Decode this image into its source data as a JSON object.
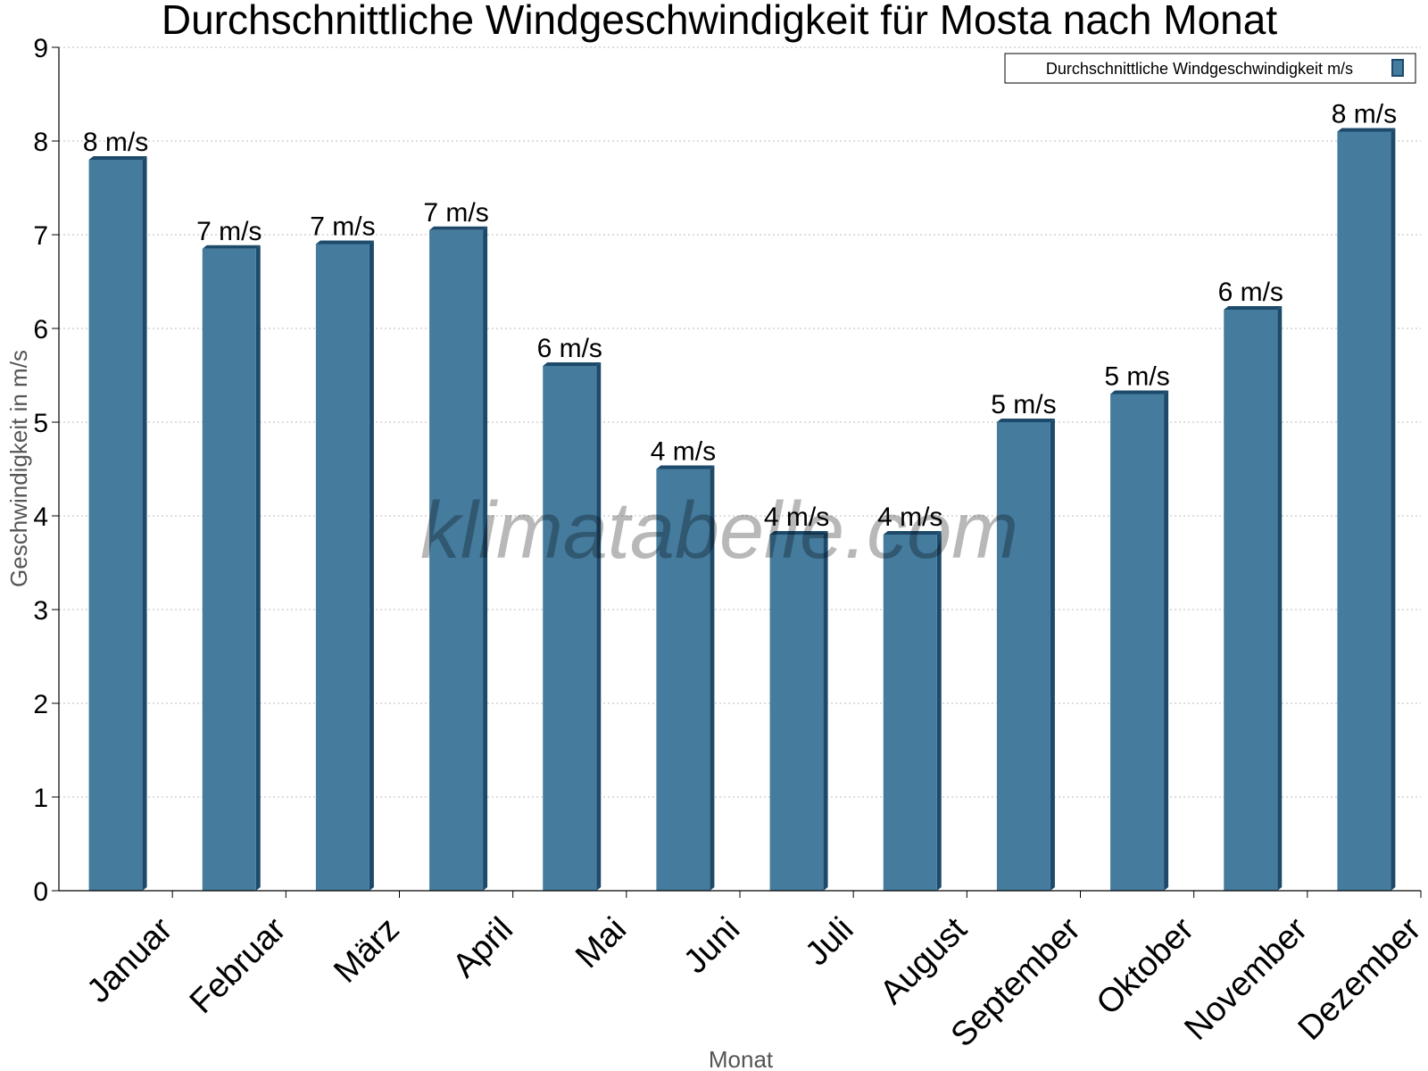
{
  "chart_data": {
    "type": "bar",
    "title": "Durchschnittliche Windgeschwindigkeit für Mosta nach Monat",
    "xlabel": "Monat",
    "ylabel": "Geschwindigkeit in m/s",
    "ylim": [
      0,
      9
    ],
    "yticks": [
      "0",
      "1",
      "2",
      "3",
      "4",
      "5",
      "6",
      "7",
      "8",
      "9"
    ],
    "grid": true,
    "legend_placement": "top-right",
    "categories": [
      "Januar",
      "Februar",
      "März",
      "April",
      "Mai",
      "Juni",
      "Juli",
      "August",
      "September",
      "Oktober",
      "November",
      "Dezember"
    ],
    "series": [
      {
        "name": "Durchschnittliche Windgeschwindigkeit m/s",
        "values": [
          7.8,
          6.85,
          6.9,
          7.05,
          5.6,
          4.5,
          3.8,
          3.8,
          5.0,
          5.3,
          6.2,
          8.1
        ],
        "labels": [
          "8 m/s",
          "7 m/s",
          "7 m/s",
          "7 m/s",
          "6 m/s",
          "4 m/s",
          "4 m/s",
          "4 m/s",
          "5 m/s",
          "5 m/s",
          "6 m/s",
          "8 m/s"
        ]
      }
    ],
    "watermark": "klimatabelle.com",
    "colors": {
      "bar": "#457b9d",
      "bar_edge": "#1d4a6b"
    }
  }
}
